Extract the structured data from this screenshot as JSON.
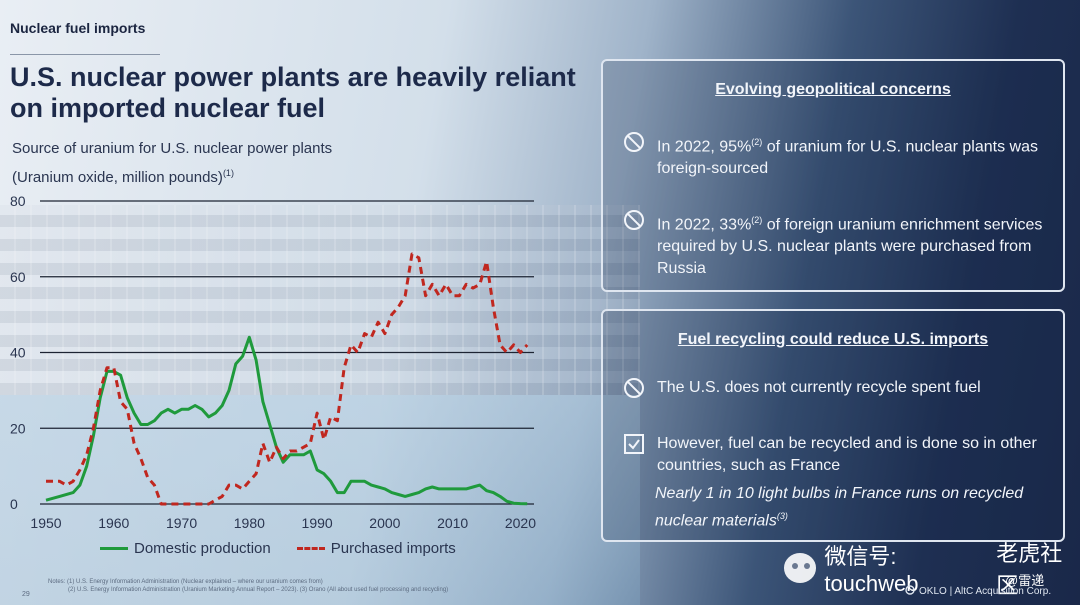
{
  "section_tag": "Nuclear fuel imports",
  "headline_line1": "U.S. nuclear power plants are heavily reliant",
  "headline_line2": "on imported nuclear fuel",
  "subtitle_line1": "Source of uranium for U.S. nuclear power plants",
  "subtitle_line2": "(Uranium oxide, million pounds)",
  "subtitle_note": "(1)",
  "chart_data": {
    "type": "line",
    "title": "Source of uranium for U.S. nuclear power plants",
    "ylabel": "Uranium oxide, million pounds",
    "xlabel": "",
    "xlim": [
      1950,
      2022
    ],
    "ylim": [
      0,
      80
    ],
    "yticks": [
      0,
      20,
      40,
      60,
      80
    ],
    "xticks": [
      1950,
      1960,
      1970,
      1980,
      1990,
      2000,
      2010,
      2020
    ],
    "grid": "horizontal",
    "series": [
      {
        "name": "Domestic production",
        "color": "#1f9a3c",
        "style": "solid",
        "points": [
          [
            1950,
            1
          ],
          [
            1952,
            2
          ],
          [
            1954,
            3
          ],
          [
            1955,
            5
          ],
          [
            1956,
            10
          ],
          [
            1957,
            18
          ],
          [
            1958,
            28
          ],
          [
            1959,
            35
          ],
          [
            1960,
            35
          ],
          [
            1961,
            34
          ],
          [
            1962,
            28
          ],
          [
            1963,
            24
          ],
          [
            1964,
            21
          ],
          [
            1965,
            21
          ],
          [
            1966,
            22
          ],
          [
            1967,
            24
          ],
          [
            1968,
            25
          ],
          [
            1969,
            24
          ],
          [
            1970,
            25
          ],
          [
            1971,
            25
          ],
          [
            1972,
            26
          ],
          [
            1973,
            25
          ],
          [
            1974,
            23
          ],
          [
            1975,
            24
          ],
          [
            1976,
            26
          ],
          [
            1977,
            30
          ],
          [
            1978,
            37
          ],
          [
            1979,
            39
          ],
          [
            1980,
            44
          ],
          [
            1981,
            38
          ],
          [
            1982,
            27
          ],
          [
            1983,
            21
          ],
          [
            1984,
            15
          ],
          [
            1985,
            11
          ],
          [
            1986,
            13
          ],
          [
            1987,
            13
          ],
          [
            1988,
            13
          ],
          [
            1989,
            14
          ],
          [
            1990,
            9
          ],
          [
            1991,
            8
          ],
          [
            1992,
            6
          ],
          [
            1993,
            3
          ],
          [
            1994,
            3
          ],
          [
            1995,
            6
          ],
          [
            1996,
            6
          ],
          [
            1997,
            6
          ],
          [
            1998,
            5
          ],
          [
            1999,
            4.5
          ],
          [
            2000,
            4
          ],
          [
            2001,
            3
          ],
          [
            2002,
            2.5
          ],
          [
            2003,
            2
          ],
          [
            2004,
            2.5
          ],
          [
            2005,
            3
          ],
          [
            2006,
            4
          ],
          [
            2007,
            4.5
          ],
          [
            2008,
            4
          ],
          [
            2009,
            4
          ],
          [
            2010,
            4
          ],
          [
            2011,
            4
          ],
          [
            2012,
            4
          ],
          [
            2013,
            4.5
          ],
          [
            2014,
            5
          ],
          [
            2015,
            3.5
          ],
          [
            2016,
            3
          ],
          [
            2017,
            2
          ],
          [
            2018,
            0.7
          ],
          [
            2019,
            0.2
          ],
          [
            2020,
            0.1
          ],
          [
            2021,
            0.05
          ]
        ]
      },
      {
        "name": "Purchased imports",
        "color": "#c0271f",
        "style": "dashed",
        "points": [
          [
            1950,
            6
          ],
          [
            1952,
            6
          ],
          [
            1953,
            5
          ],
          [
            1954,
            6
          ],
          [
            1955,
            9
          ],
          [
            1956,
            13
          ],
          [
            1957,
            20
          ],
          [
            1958,
            30
          ],
          [
            1959,
            36
          ],
          [
            1960,
            36
          ],
          [
            1961,
            27
          ],
          [
            1962,
            25
          ],
          [
            1963,
            16
          ],
          [
            1964,
            12
          ],
          [
            1965,
            7
          ],
          [
            1966,
            5
          ],
          [
            1967,
            0
          ],
          [
            1968,
            0
          ],
          [
            1970,
            0
          ],
          [
            1972,
            0
          ],
          [
            1973,
            0
          ],
          [
            1974,
            0
          ],
          [
            1975,
            1
          ],
          [
            1976,
            2
          ],
          [
            1977,
            5
          ],
          [
            1978,
            5
          ],
          [
            1979,
            4
          ],
          [
            1980,
            6
          ],
          [
            1981,
            8
          ],
          [
            1982,
            16
          ],
          [
            1983,
            11
          ],
          [
            1984,
            15
          ],
          [
            1985,
            12
          ],
          [
            1986,
            14
          ],
          [
            1987,
            14
          ],
          [
            1988,
            15
          ],
          [
            1989,
            16
          ],
          [
            1990,
            24
          ],
          [
            1991,
            17
          ],
          [
            1992,
            23
          ],
          [
            1993,
            22
          ],
          [
            1994,
            36
          ],
          [
            1995,
            42
          ],
          [
            1996,
            40
          ],
          [
            1997,
            45
          ],
          [
            1998,
            44
          ],
          [
            1999,
            48
          ],
          [
            2000,
            45
          ],
          [
            2001,
            50
          ],
          [
            2002,
            52
          ],
          [
            2003,
            55
          ],
          [
            2004,
            66
          ],
          [
            2005,
            65
          ],
          [
            2006,
            55
          ],
          [
            2007,
            58
          ],
          [
            2008,
            55
          ],
          [
            2009,
            58
          ],
          [
            2010,
            55
          ],
          [
            2011,
            55
          ],
          [
            2012,
            58
          ],
          [
            2013,
            57
          ],
          [
            2014,
            58
          ],
          [
            2015,
            64
          ],
          [
            2016,
            52
          ],
          [
            2017,
            42
          ],
          [
            2018,
            40
          ],
          [
            2019,
            42
          ],
          [
            2020,
            40
          ],
          [
            2021,
            42
          ]
        ]
      }
    ]
  },
  "legend": {
    "domestic": "Domestic production",
    "imports": "Purchased imports"
  },
  "panel1": {
    "title": "Evolving geopolitical concerns",
    "bullet1_a": "In 2022, 95%",
    "bullet1_sup": "(2)",
    "bullet1_b": " of uranium for U.S. nuclear plants was foreign-sourced",
    "bullet2_a": "In 2022, 33%",
    "bullet2_sup": "(2)",
    "bullet2_b": " of foreign uranium enrichment services required by U.S. nuclear plants were purchased from Russia"
  },
  "panel2": {
    "title": "Fuel recycling could reduce U.S. imports",
    "bullet1": "The U.S. does not currently recycle spent fuel",
    "bullet2": "However, fuel can be recycled and is done so in other countries, such as France",
    "note": "Nearly 1 in 10 light bulbs in France runs on recycled nuclear materials",
    "note_sup": "(3)"
  },
  "notes_line1": "Notes: (1) U.S. Energy Information Administration (Nuclear explained – where our uranium comes from)",
  "notes_line2": "(2) U.S. Energy Information Administration (Uranium Marketing Annual Report – 2023). (3) Orano (All about used fuel processing and recycling)",
  "page_number": "29",
  "footer_brand": "OKLO | AltC Acquisition Corp.",
  "watermark_text": "微信号: touchweb",
  "watermark_extra": "老虎社区",
  "handle": "@雷递"
}
